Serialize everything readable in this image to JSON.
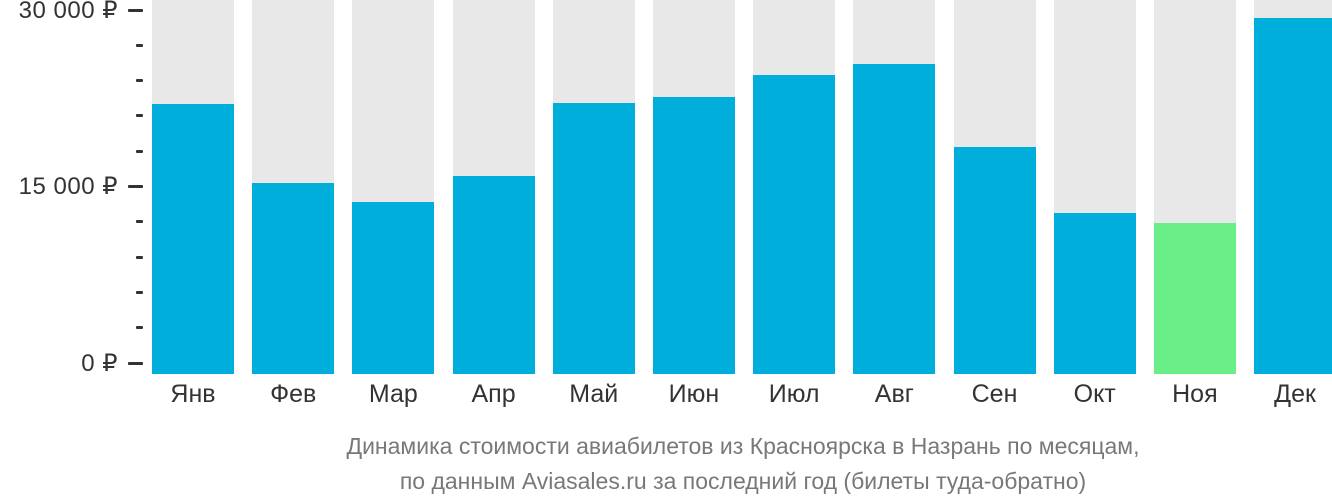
{
  "colors": {
    "bar": "#00AEDC",
    "bar_highlight": "#69EE88",
    "column_bg": "#E8E8E8",
    "axis_text": "#333333",
    "caption_text": "#787878"
  },
  "chart_data": {
    "type": "bar",
    "title": "Динамика стоимости авиабилетов из Красноярска в Назрань по месяцам,",
    "subtitle": "по данным Aviasales.ru за последний год (билеты туда-обратно)",
    "categories": [
      "Янв",
      "Фев",
      "Мар",
      "Апр",
      "Май",
      "Июн",
      "Июл",
      "Авг",
      "Сен",
      "Окт",
      "Ноя",
      "Дек"
    ],
    "values": [
      22200,
      15700,
      14200,
      16300,
      22300,
      22800,
      24600,
      25500,
      18700,
      13300,
      12400,
      29300
    ],
    "unit": "₽",
    "highlight_index": 10,
    "highlight_category": "Ноя",
    "highlight_meaning": "cheapest month",
    "ylim": [
      0,
      30000
    ],
    "yticks": [
      {
        "value": 0,
        "label": "0 ₽"
      },
      {
        "value": 15000,
        "label": "15 000 ₽"
      },
      {
        "value": 30000,
        "label": "30 000 ₽"
      }
    ],
    "minor_ticks": [
      3000,
      6000,
      9000,
      12000,
      18000,
      21000,
      24000,
      27000
    ],
    "grid": false,
    "legend": false
  }
}
